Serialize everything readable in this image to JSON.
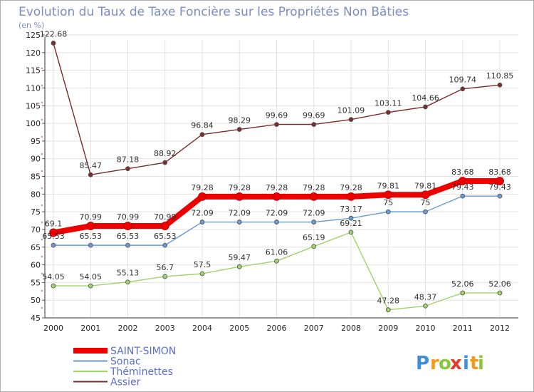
{
  "chart_data": {
    "type": "line",
    "title": "Evolution du Taux de Taxe Foncière sur les Propriétés Non Bâties",
    "subtitle": "(en %)",
    "x": [
      "2000",
      "2001",
      "2002",
      "2003",
      "2004",
      "2005",
      "2006",
      "2007",
      "2008",
      "2009",
      "2010",
      "2011",
      "2012"
    ],
    "y_ticks": [
      45,
      50,
      55,
      60,
      65,
      70,
      75,
      80,
      85,
      90,
      95,
      100,
      105,
      110,
      115,
      120,
      125
    ],
    "ylim": [
      45,
      125
    ],
    "grid": true,
    "legend_position": "bottom-left",
    "series": [
      {
        "name": "Assier",
        "color": "#7a2b2b",
        "values": [
          122.68,
          85.47,
          87.18,
          88.92,
          96.84,
          98.29,
          99.69,
          99.69,
          101.09,
          103.11,
          104.66,
          109.74,
          110.85
        ],
        "labels": [
          "122.68",
          "85.47",
          "87.18",
          "88.92",
          "96.84",
          "98.29",
          "99.69",
          "99.69",
          "101.09",
          "103.11",
          "104.66",
          "109.74",
          "110.85"
        ]
      },
      {
        "name": "Théminettes",
        "color": "#9ed36a",
        "values": [
          54.05,
          54.05,
          55.13,
          56.7,
          57.5,
          59.47,
          61.06,
          65.19,
          69.21,
          47.28,
          48.37,
          52.06,
          52.06
        ],
        "labels": [
          "54.05",
          "54.05",
          "55.13",
          "56.7",
          "57.5",
          "59.47",
          "61.06",
          "65.19",
          "69.21",
          "47.28",
          "48.37",
          "52.06",
          "52.06"
        ]
      },
      {
        "name": "Sonac",
        "color": "#6a9ad0",
        "values": [
          65.53,
          65.53,
          65.53,
          65.53,
          72.09,
          72.09,
          72.09,
          72.09,
          73.17,
          75,
          75,
          79.43,
          79.43
        ],
        "labels": [
          "65.53",
          "65.53",
          "65.53",
          "65.53",
          "72.09",
          "72.09",
          "72.09",
          "72.09",
          "73.17",
          "75",
          "75",
          "79.43",
          "79.43"
        ]
      },
      {
        "name": "SAINT-SIMON",
        "color": "#ee0000",
        "values": [
          69.1,
          70.99,
          70.99,
          70.99,
          79.28,
          79.28,
          79.28,
          79.28,
          79.28,
          79.81,
          79.81,
          83.68,
          83.68
        ],
        "labels": [
          "69.1",
          "70.99",
          "70.99",
          "70.99",
          "79.28",
          "79.28",
          "79.28",
          "79.28",
          "79.28",
          "79.81",
          "79.81",
          "83.68",
          "83.68"
        ]
      }
    ],
    "legend": [
      "SAINT-SIMON",
      "Sonac",
      "Théminettes",
      "Assier"
    ]
  },
  "logo": {
    "letters": [
      "P",
      "r",
      "o",
      "x",
      "i",
      "t",
      "i"
    ],
    "colors": [
      "#3f8fd6",
      "#f19a1c",
      "#8cc63f",
      "#e8372b",
      "#3f8fd6",
      "#f19a1c",
      "#8cc63f"
    ]
  }
}
